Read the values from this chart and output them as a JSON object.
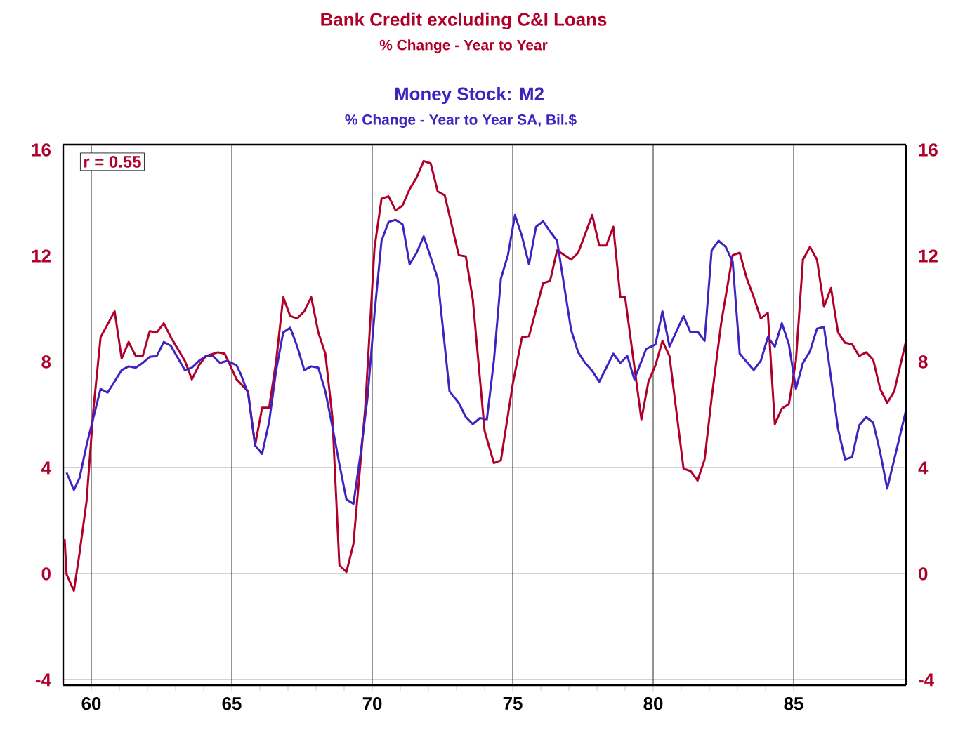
{
  "chart_data": {
    "type": "line",
    "xlim": [
      59,
      89
    ],
    "xticks": [
      60,
      65,
      70,
      75,
      80,
      85
    ],
    "ylim": [
      -4.2,
      16.2
    ],
    "yticks": [
      -4,
      0,
      4,
      8,
      12,
      16
    ],
    "y2lim": [
      -4.2,
      16.2
    ],
    "y2ticks": [
      -4,
      0,
      4,
      8,
      12,
      16
    ],
    "grid": true,
    "marker": "none",
    "line_style": "solid",
    "annotations": [
      "% Change - Year to Year",
      "% Change - Year to Year     SA, Bil.$",
      "r = 0.55"
    ],
    "series": [
      {
        "name": "Bank Credit excluding C&I Loans",
        "color": "#b0002a",
        "x": [
          59.05,
          59.12,
          59.38,
          59.58,
          59.83,
          60.08,
          60.33,
          60.83,
          61.08,
          61.33,
          61.58,
          61.83,
          62.08,
          62.33,
          62.58,
          62.83,
          63.33,
          63.58,
          63.83,
          64.08,
          64.5,
          64.75,
          65.17,
          65.58,
          65.83,
          66.08,
          66.33,
          66.58,
          66.83,
          67.08,
          67.33,
          67.58,
          67.83,
          68.08,
          68.33,
          68.58,
          68.83,
          69.08,
          69.33,
          69.75,
          70.08,
          70.33,
          70.58,
          70.83,
          71.08,
          71.33,
          71.58,
          71.83,
          72.08,
          72.33,
          72.58,
          73.08,
          73.33,
          73.58,
          74.0,
          74.33,
          74.58,
          75.0,
          75.33,
          75.58,
          76.08,
          76.33,
          76.58,
          77.08,
          77.33,
          77.83,
          78.08,
          78.33,
          78.58,
          78.83,
          79.0,
          79.58,
          79.83,
          80.08,
          80.33,
          80.58,
          81.08,
          81.33,
          81.58,
          81.83,
          82.08,
          82.42,
          82.83,
          83.08,
          83.33,
          83.58,
          83.83,
          84.08,
          84.33,
          84.58,
          84.83,
          85.08,
          85.33,
          85.58,
          85.83,
          86.08,
          86.33,
          86.58,
          86.83,
          87.08,
          87.33,
          87.58,
          87.83,
          88.08,
          88.33,
          88.58,
          89.0
        ],
        "values": [
          1.31,
          -0.02,
          -0.64,
          0.78,
          2.73,
          6.27,
          8.93,
          9.91,
          8.13,
          8.75,
          8.22,
          8.22,
          9.16,
          9.11,
          9.46,
          8.93,
          8.04,
          7.34,
          7.87,
          8.22,
          8.36,
          8.31,
          7.34,
          6.89,
          4.85,
          6.27,
          6.27,
          8.04,
          10.44,
          9.73,
          9.64,
          9.91,
          10.44,
          9.11,
          8.31,
          5.92,
          0.33,
          0.07,
          1.13,
          6.27,
          12.3,
          14.16,
          14.25,
          13.72,
          13.9,
          14.52,
          14.96,
          15.58,
          15.49,
          14.43,
          14.29,
          12.03,
          11.98,
          10.35,
          5.39,
          4.18,
          4.29,
          7.16,
          8.93,
          8.97,
          10.97,
          11.06,
          12.21,
          11.86,
          12.12,
          13.54,
          12.39,
          12.39,
          13.1,
          10.44,
          10.44,
          5.83,
          7.25,
          7.87,
          8.79,
          8.22,
          3.97,
          3.88,
          3.52,
          4.32,
          6.63,
          9.46,
          12.03,
          12.12,
          11.15,
          10.44,
          9.64,
          9.85,
          5.65,
          6.24,
          6.41,
          8.04,
          11.86,
          12.34,
          11.86,
          10.08,
          10.79,
          9.11,
          8.72,
          8.67,
          8.22,
          8.36,
          8.08,
          6.98,
          6.45,
          6.89,
          8.79
        ]
      },
      {
        "name": "Money Stock: M2",
        "color": "#3f22c0",
        "x": [
          59.12,
          59.38,
          59.58,
          59.83,
          60.08,
          60.33,
          60.58,
          61.08,
          61.33,
          61.58,
          61.83,
          62.08,
          62.33,
          62.58,
          62.83,
          63.33,
          63.58,
          63.83,
          64.08,
          64.33,
          64.58,
          64.83,
          65.17,
          65.33,
          65.58,
          65.83,
          66.08,
          66.33,
          66.58,
          66.83,
          67.08,
          67.33,
          67.58,
          67.83,
          68.08,
          68.33,
          68.58,
          68.83,
          69.08,
          69.33,
          69.58,
          69.83,
          70.08,
          70.33,
          70.58,
          70.83,
          71.08,
          71.33,
          71.58,
          71.83,
          72.08,
          72.33,
          72.75,
          73.08,
          73.33,
          73.58,
          73.83,
          74.08,
          74.33,
          74.58,
          74.83,
          75.08,
          75.33,
          75.58,
          75.83,
          76.08,
          76.33,
          76.58,
          76.83,
          77.08,
          77.33,
          77.58,
          77.83,
          78.08,
          78.33,
          78.58,
          78.83,
          79.08,
          79.33,
          79.75,
          80.08,
          80.33,
          80.58,
          81.08,
          81.33,
          81.58,
          81.83,
          82.08,
          82.33,
          82.58,
          82.83,
          83.08,
          83.58,
          83.83,
          84.08,
          84.33,
          84.58,
          84.83,
          85.08,
          85.33,
          85.58,
          85.83,
          86.08,
          86.58,
          86.83,
          87.08,
          87.33,
          87.58,
          87.83,
          88.08,
          88.33,
          88.58,
          89.0
        ],
        "values": [
          3.82,
          3.17,
          3.61,
          4.85,
          5.92,
          6.98,
          6.84,
          7.69,
          7.83,
          7.78,
          7.96,
          8.19,
          8.22,
          8.75,
          8.61,
          7.69,
          7.78,
          8.04,
          8.22,
          8.22,
          7.96,
          8.04,
          7.87,
          7.51,
          6.8,
          4.85,
          4.53,
          5.74,
          7.69,
          9.11,
          9.29,
          8.58,
          7.69,
          7.83,
          7.78,
          6.89,
          5.56,
          4.14,
          2.81,
          2.64,
          4.5,
          6.63,
          9.82,
          12.57,
          13.28,
          13.36,
          13.19,
          11.68,
          12.12,
          12.74,
          11.95,
          11.15,
          6.89,
          6.45,
          5.92,
          5.65,
          5.88,
          5.83,
          8.04,
          11.15,
          12.03,
          13.54,
          12.74,
          11.68,
          13.1,
          13.31,
          12.92,
          12.57,
          10.88,
          9.2,
          8.36,
          7.96,
          7.66,
          7.25,
          7.78,
          8.31,
          7.96,
          8.22,
          7.34,
          8.49,
          8.66,
          9.91,
          8.58,
          9.73,
          9.11,
          9.14,
          8.79,
          12.21,
          12.57,
          12.34,
          11.77,
          8.31,
          7.69,
          8.04,
          8.93,
          8.58,
          9.46,
          8.66,
          6.98,
          7.96,
          8.4,
          9.25,
          9.32,
          5.47,
          4.32,
          4.41,
          5.6,
          5.92,
          5.71,
          4.59,
          3.22,
          4.32,
          6.18
        ]
      }
    ]
  }
}
